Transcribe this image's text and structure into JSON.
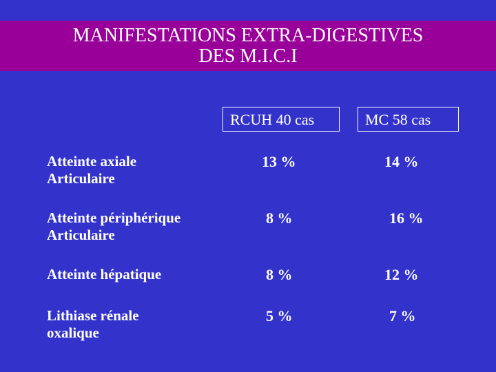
{
  "slide": {
    "title_line1": "MANIFESTATIONS EXTRA-DIGESTIVES",
    "title_line2": "DES M.I.C.I"
  },
  "table": {
    "columns": [
      "RCUH  40 cas",
      "MC  58 cas"
    ],
    "rows": [
      {
        "label_line1": "Atteinte axiale",
        "label_line2": "Articulaire",
        "rcuh": "13 %",
        "mc": "14 %"
      },
      {
        "label_line1": "Atteinte périphérique",
        "label_line2": "Articulaire",
        "rcuh": "8 %",
        "mc": "16 %"
      },
      {
        "label_line1": "Atteinte hépatique",
        "label_line2": "",
        "rcuh": "8 %",
        "mc": "12 %"
      },
      {
        "label_line1": "Lithiase rénale",
        "label_line2": "oxalique",
        "rcuh": "5 %",
        "mc": "7 %"
      }
    ]
  },
  "colors": {
    "background": "#3333cc",
    "title_bar": "#990099",
    "text": "#ffffff"
  }
}
